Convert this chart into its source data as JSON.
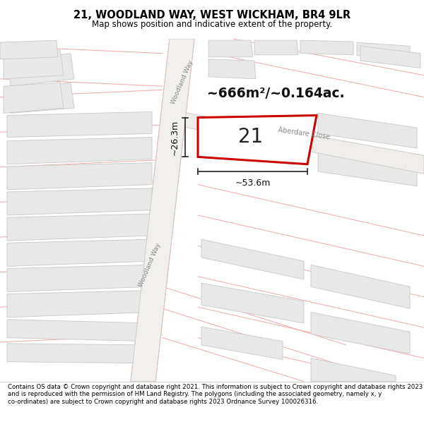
{
  "title": "21, WOODLAND WAY, WEST WICKHAM, BR4 9LR",
  "subtitle": "Map shows position and indicative extent of the property.",
  "footer": "Contains OS data © Crown copyright and database right 2021. This information is subject to Crown copyright and database rights 2023 and is reproduced with the permission of HM Land Registry. The polygons (including the associated geometry, namely x, y co-ordinates) are subject to Crown copyright and database rights 2023 Ordnance Survey 100026316.",
  "map_bg": "#ffffff",
  "block_fill": "#e8e8e8",
  "block_edge": "#c8c8c8",
  "road_line_color": "#f4a0a0",
  "highlight_color": "#cc0000",
  "area_label": "~666m²/~0.164ac.",
  "plot_number": "21",
  "dim_width": "~53.6m",
  "dim_height": "~26.3m",
  "road_label_1": "Woodland Way",
  "road_label_2": "Aberdare Close"
}
